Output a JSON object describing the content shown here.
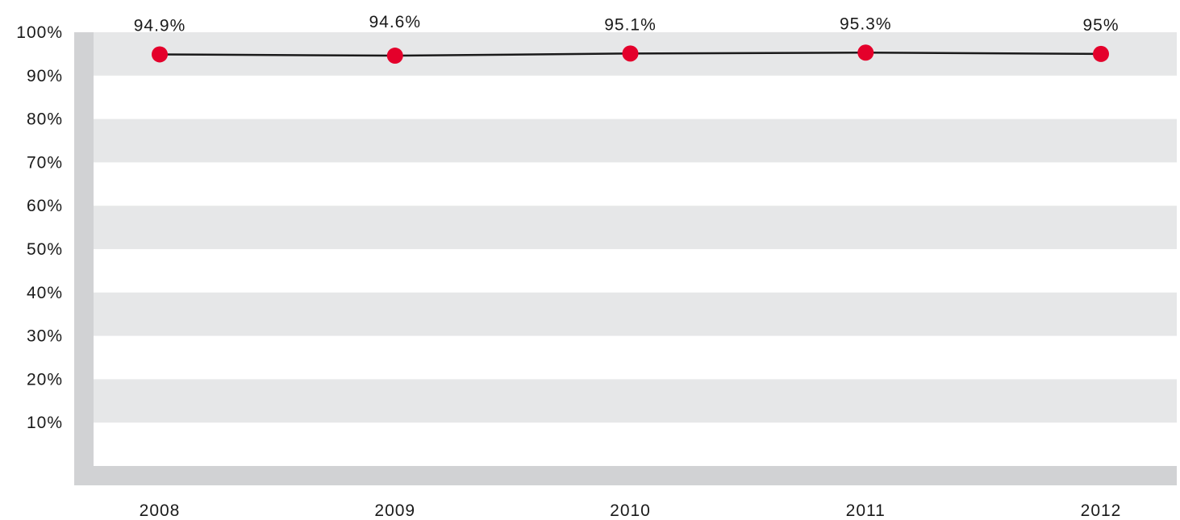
{
  "chart_data": {
    "type": "line",
    "title": "",
    "xlabel": "",
    "ylabel": "",
    "categories": [
      "2008",
      "2009",
      "2010",
      "2011",
      "2012"
    ],
    "values": [
      94.9,
      94.6,
      95.1,
      95.3,
      95
    ],
    "data_labels": [
      "94.9%",
      "94.6%",
      "95.1%",
      "95.3%",
      "95%"
    ],
    "y_tick_labels": [
      "10%",
      "20%",
      "30%",
      "40%",
      "50%",
      "60%",
      "70%",
      "80%",
      "90%",
      "100%"
    ],
    "y_tick_values": [
      10,
      20,
      30,
      40,
      50,
      60,
      70,
      80,
      90,
      100
    ],
    "ylim": [
      0,
      100
    ],
    "grid": "alternating horizontal bands",
    "legend": "none",
    "colors": {
      "marker": "#e4002b",
      "line": "#1a1a1a",
      "band": "#e6e7e8",
      "axis": "#d1d2d4",
      "text": "#1a1a1a"
    }
  }
}
